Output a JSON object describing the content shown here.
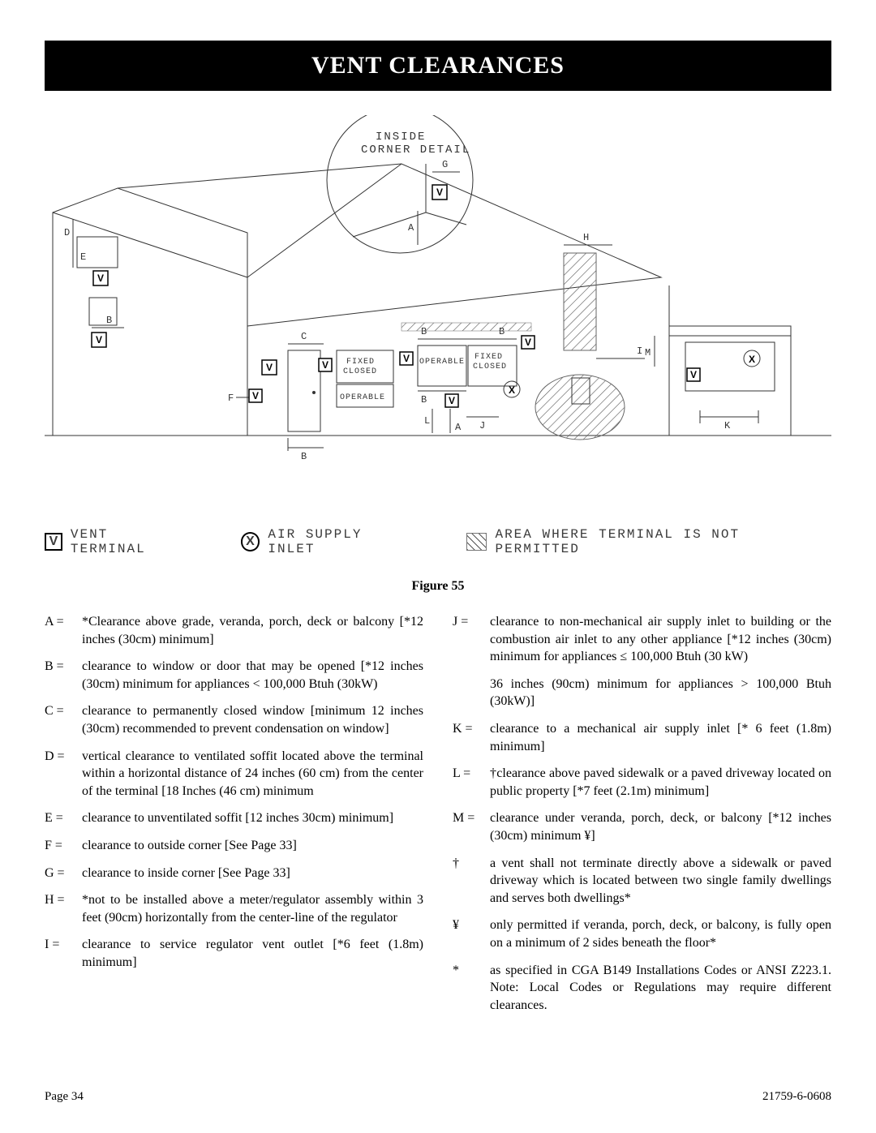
{
  "title": "VENT CLEARANCES",
  "diagram": {
    "type": "technical-line-drawing",
    "inside_corner_label_l1": "INSIDE",
    "inside_corner_label_l2": "CORNER DETAIL",
    "labels": {
      "fixed_closed": "FIXED\nCLOSED",
      "operable": "OPERABLE",
      "letters": [
        "A",
        "B",
        "C",
        "D",
        "E",
        "F",
        "G",
        "H",
        "I",
        "J",
        "K",
        "L",
        "M"
      ]
    },
    "legend": {
      "vent_terminal_symbol": "V",
      "vent_terminal_text": "VENT TERMINAL",
      "air_supply_symbol": "X",
      "air_supply_text": "AIR SUPPLY INLET",
      "not_permitted_text": "AREA WHERE TERMINAL IS NOT PERMITTED"
    }
  },
  "figure_caption": "Figure 55",
  "definitions_left": [
    {
      "k": "A  =",
      "v": "*Clearance above grade, veranda, porch, deck or balcony [*12 inches (30cm) minimum]"
    },
    {
      "k": "B  =",
      "v": "clearance to window or door that may be opened [*12 inches (30cm) minimum for appliances < 100,000 Btuh (30kW)"
    },
    {
      "k": "C  =",
      "v": "clearance to permanently closed window [minimum 12 inches (30cm) recommended to prevent condensation on window]"
    },
    {
      "k": "D  =",
      "v": "vertical clearance to ventilated soffit located above the terminal within a horizontal distance of 24 inches (60 cm) from the center of the terminal [18 Inches (46 cm) minimum"
    },
    {
      "k": "E  =",
      "v": "clearance to unventilated soffit [12 inches 30cm) minimum]"
    },
    {
      "k": "F  =",
      "v": "clearance to outside corner [See Page 33]"
    },
    {
      "k": "G  =",
      "v": "clearance to inside corner [See Page 33]"
    },
    {
      "k": "H  =",
      "v": "*not to be installed above a meter/regulator assembly within 3 feet (90cm) horizontally from the center-line of the regulator"
    },
    {
      "k": "I   =",
      "v": "clearance to service regulator vent outlet [*6 feet (1.8m) minimum]"
    }
  ],
  "definitions_right": [
    {
      "k": "J   =",
      "v": "clearance to non-mechanical air supply inlet to building or the combustion air inlet to any other appliance [*12 inches (30cm) minimum for appliances ≤ 100,000 Btuh (30 kW)"
    },
    {
      "k": "",
      "v": "36 inches (90cm) minimum for appliances > 100,000 Btuh (30kW)]"
    },
    {
      "k": "K  =",
      "v": "clearance to a mechanical air supply inlet [* 6 feet (1.8m) minimum]"
    },
    {
      "k": "L  =",
      "v": "†clearance above paved sidewalk or a paved driveway located on public property [*7 feet (2.1m) minimum]"
    },
    {
      "k": "M =",
      "v": "clearance under veranda, porch, deck, or balcony [*12 inches (30cm) minimum ¥]"
    },
    {
      "k": "†",
      "v": "a vent shall not terminate directly above a sidewalk or paved driveway which is located between two single family dwellings and serves both dwellings*"
    },
    {
      "k": "¥",
      "v": "only permitted if veranda, porch, deck, or balcony, is fully open on a minimum of 2 sides beneath the floor*"
    },
    {
      "k": "*",
      "v": "as specified in CGA B149 Installations Codes or ANSI Z223.1. Note: Local Codes or Regulations may require different clearances."
    }
  ],
  "footer": {
    "left": "Page 34",
    "right": "21759-6-0608"
  },
  "colors": {
    "page_bg": "#ffffff",
    "title_bg": "#000000",
    "title_fg": "#ffffff",
    "text": "#000000",
    "diagram_stroke": "#333333"
  }
}
